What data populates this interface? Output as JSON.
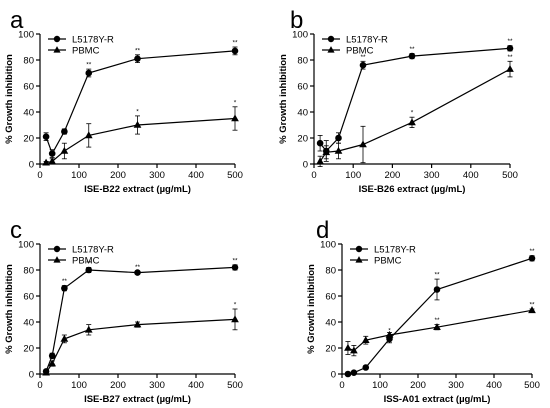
{
  "colors": {
    "series": "#000000",
    "background": "#ffffff"
  },
  "chart_data": [
    {
      "type": "line",
      "panel": "a",
      "title": "",
      "xlabel": "ISE-B22 extract (µg/mL)",
      "ylabel": "% Growth inhibition",
      "xlim": [
        0,
        500
      ],
      "ylim": [
        0,
        100
      ],
      "xticks": [
        0,
        100,
        200,
        300,
        400,
        500
      ],
      "yticks": [
        0,
        20,
        40,
        60,
        80,
        100
      ],
      "legend_position": "top-left",
      "series": [
        {
          "name": "L5178Y-R",
          "marker": "circle",
          "x": [
            15.6,
            31.25,
            62.5,
            125,
            250,
            500
          ],
          "y": [
            21,
            8,
            25,
            70,
            81,
            87
          ],
          "err": [
            3,
            3,
            2,
            3,
            3,
            3
          ],
          "sig": [
            "",
            "",
            "",
            "**",
            "**",
            "**"
          ]
        },
        {
          "name": "PBMC",
          "marker": "triangle",
          "x": [
            15.6,
            31.25,
            62.5,
            125,
            250,
            500
          ],
          "y": [
            1,
            2,
            10,
            22,
            30,
            35
          ],
          "err": [
            1,
            2,
            6,
            9,
            7,
            9
          ],
          "sig": [
            "",
            "",
            "",
            "",
            "*",
            "*"
          ]
        }
      ]
    },
    {
      "type": "line",
      "panel": "b",
      "title": "",
      "xlabel": "ISE-B26 extract (µg/mL)",
      "ylabel": "% Growth inhibition",
      "xlim": [
        0,
        500
      ],
      "ylim": [
        0,
        100
      ],
      "xticks": [
        0,
        100,
        200,
        300,
        400,
        500
      ],
      "yticks": [
        0,
        20,
        40,
        60,
        80,
        100
      ],
      "legend_position": "top-left",
      "series": [
        {
          "name": "L5178Y-R",
          "marker": "circle",
          "x": [
            15.6,
            31.25,
            62.5,
            125,
            250,
            500
          ],
          "y": [
            16,
            10,
            20,
            76,
            83,
            89
          ],
          "err": [
            6,
            8,
            4,
            3,
            2,
            2
          ],
          "sig": [
            "",
            "",
            "",
            "**",
            "**",
            "**"
          ]
        },
        {
          "name": "PBMC",
          "marker": "triangle",
          "x": [
            15.6,
            31.25,
            62.5,
            125,
            250,
            500
          ],
          "y": [
            2,
            9,
            10,
            15,
            32,
            73
          ],
          "err": [
            4,
            5,
            6,
            14,
            4,
            6
          ],
          "sig": [
            "",
            "",
            "",
            "",
            "*",
            "**"
          ]
        }
      ]
    },
    {
      "type": "line",
      "panel": "c",
      "title": "",
      "xlabel": "ISE-B27 extract (µg/mL)",
      "ylabel": "% Growth inhibition",
      "xlim": [
        0,
        500
      ],
      "ylim": [
        0,
        100
      ],
      "xticks": [
        0,
        100,
        200,
        300,
        400,
        500
      ],
      "yticks": [
        0,
        20,
        40,
        60,
        80,
        100
      ],
      "legend_position": "top-left",
      "series": [
        {
          "name": "L5178Y-R",
          "marker": "circle",
          "x": [
            15.6,
            31.25,
            62.5,
            125,
            250,
            500
          ],
          "y": [
            2,
            14,
            66,
            80,
            78,
            82
          ],
          "err": [
            1,
            2,
            2,
            2,
            1,
            2
          ],
          "sig": [
            "",
            "",
            "**",
            "**",
            "**",
            "**"
          ]
        },
        {
          "name": "PBMC",
          "marker": "triangle",
          "x": [
            15.6,
            31.25,
            62.5,
            125,
            250,
            500
          ],
          "y": [
            1,
            8,
            27,
            34,
            38,
            42
          ],
          "err": [
            1,
            2,
            3,
            4,
            2,
            8
          ],
          "sig": [
            "",
            "",
            "",
            "",
            "",
            "*"
          ]
        }
      ]
    },
    {
      "type": "line",
      "panel": "d",
      "title": "",
      "xlabel": "ISS-A01 extract (µg/mL)",
      "ylabel": "% Growth inhibition",
      "xlim": [
        0,
        500
      ],
      "ylim": [
        0,
        100
      ],
      "xticks": [
        0,
        100,
        200,
        300,
        400,
        500
      ],
      "yticks": [
        0,
        20,
        40,
        60,
        80,
        100
      ],
      "legend_position": "top-left",
      "series": [
        {
          "name": "L5178Y-R",
          "marker": "circle",
          "x": [
            15.6,
            31.25,
            62.5,
            125,
            250,
            500
          ],
          "y": [
            0,
            1,
            5,
            27,
            65,
            89
          ],
          "err": [
            0,
            0,
            1,
            3,
            8,
            2
          ],
          "sig": [
            "",
            "",
            "",
            "*",
            "**",
            "**"
          ]
        },
        {
          "name": "PBMC",
          "marker": "triangle",
          "x": [
            15.6,
            31.25,
            62.5,
            125,
            250,
            500
          ],
          "y": [
            20,
            18,
            26,
            30,
            36,
            49
          ],
          "err": [
            5,
            4,
            3,
            2,
            2,
            1
          ],
          "sig": [
            "",
            "",
            "",
            "",
            "**",
            "**"
          ]
        }
      ]
    }
  ]
}
